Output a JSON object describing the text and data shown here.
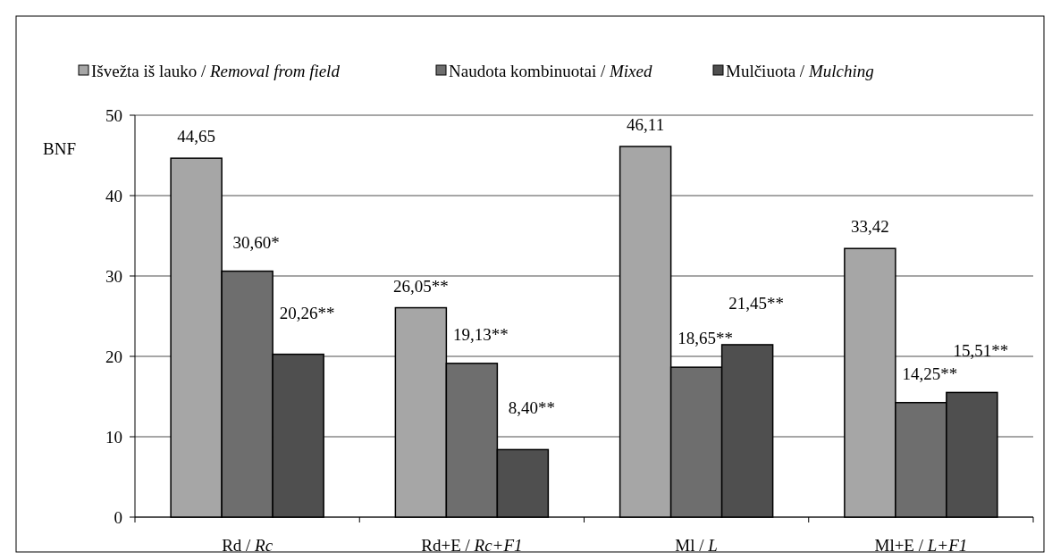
{
  "chart_data": {
    "type": "bar",
    "ylabel": "BNF",
    "categories": [
      "Rd / Rc",
      "Rd+E / Rc+F1",
      "Ml / L",
      "Ml+E / L+F1"
    ],
    "series": [
      {
        "name": "Išvežta iš lauko / Removal from field",
        "color": "#a6a6a6",
        "values": [
          44.65,
          26.05,
          46.11,
          33.42
        ],
        "value_labels": [
          "44,65",
          "26,05**",
          "46,11",
          "33,42"
        ]
      },
      {
        "name": "Naudota kombinuotai / Mixed",
        "color": "#6e6e6e",
        "values": [
          30.6,
          19.13,
          18.65,
          14.25
        ],
        "value_labels": [
          "30,60*",
          "19,13**",
          "18,65**",
          "14,25**"
        ]
      },
      {
        "name": "Mulčiuota / Mulching",
        "color": "#4f4f4f",
        "values": [
          20.26,
          8.4,
          21.45,
          15.51
        ],
        "value_labels": [
          "20,26**",
          "8,40**",
          "21,45**",
          "15,51**"
        ]
      }
    ],
    "ylim": [
      0,
      50
    ],
    "yticks": [
      0,
      10,
      20,
      30,
      40,
      50
    ],
    "grid": "y",
    "legend": "top"
  }
}
